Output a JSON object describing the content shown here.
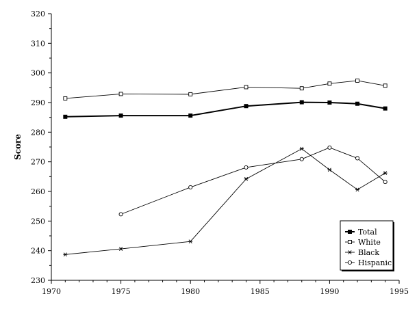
{
  "chart_data": {
    "type": "line",
    "title": "",
    "xlabel": "",
    "ylabel": "Score",
    "xlim": [
      1970,
      1995
    ],
    "ylim": [
      230,
      320
    ],
    "xticks": [
      1970,
      1975,
      1980,
      1985,
      1990,
      1995
    ],
    "yticks": [
      230,
      240,
      250,
      260,
      270,
      280,
      290,
      300,
      310,
      320
    ],
    "grid": false,
    "legend_position": "bottom-right",
    "series": [
      {
        "name": "Total",
        "marker": "filled-square",
        "x": [
          1971,
          1975,
          1980,
          1984,
          1988,
          1990,
          1992,
          1994
        ],
        "y": [
          285.2,
          285.6,
          285.6,
          288.8,
          290.1,
          290.0,
          289.6,
          288.0
        ]
      },
      {
        "name": "White",
        "marker": "open-square",
        "x": [
          1971,
          1975,
          1980,
          1984,
          1988,
          1990,
          1992,
          1994
        ],
        "y": [
          291.4,
          292.9,
          292.8,
          295.2,
          294.8,
          296.4,
          297.4,
          295.7
        ]
      },
      {
        "name": "Black",
        "marker": "star",
        "x": [
          1971,
          1975,
          1980,
          1984,
          1988,
          1990,
          1992,
          1994
        ],
        "y": [
          238.7,
          240.6,
          243.1,
          264.2,
          274.4,
          267.3,
          260.6,
          266.2
        ]
      },
      {
        "name": "Hispanic",
        "marker": "open-circle",
        "x": [
          1975,
          1980,
          1984,
          1988,
          1990,
          1992,
          1994
        ],
        "y": [
          252.3,
          261.4,
          268.1,
          270.9,
          274.8,
          271.2,
          263.2
        ]
      }
    ]
  }
}
